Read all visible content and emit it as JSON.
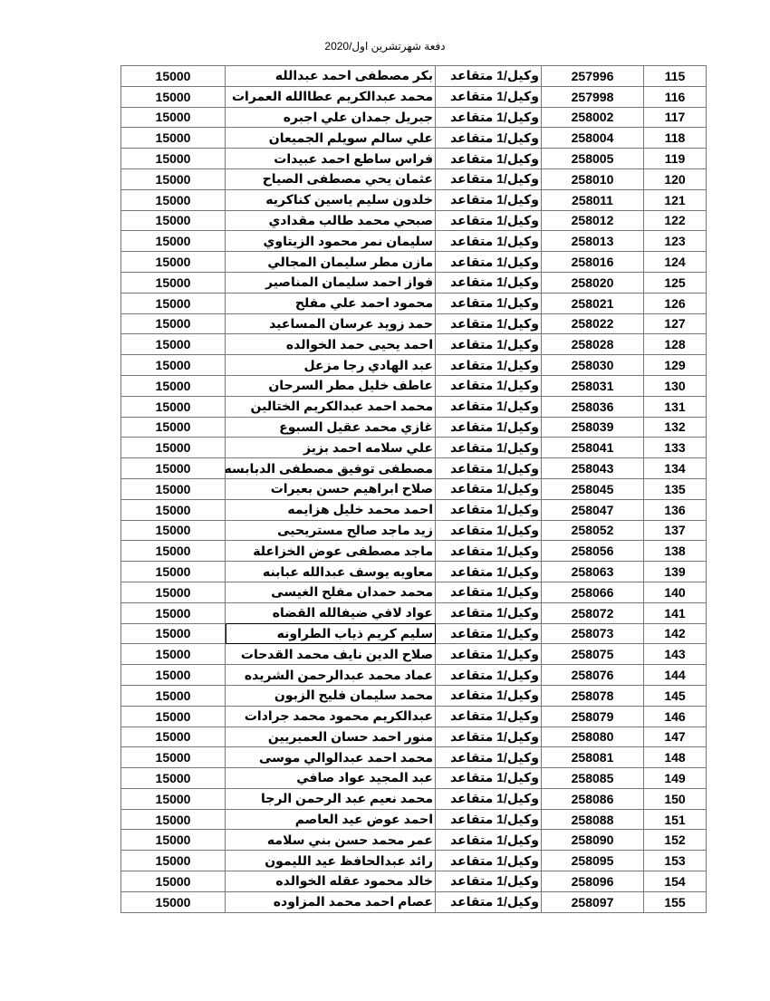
{
  "title": "دفعة شهرتشرين اول/2020",
  "rows": [
    [
      "115",
      "257996",
      "وكيل/1 متقاعد",
      "بكر مصطفى احمد عبدالله",
      "15000"
    ],
    [
      "116",
      "257998",
      "وكيل/1 متقاعد",
      "محمد عبدالكريم عطاالله العمرات",
      "15000"
    ],
    [
      "117",
      "258002",
      "وكيل/1 متقاعد",
      "جبريل جمدان علي اجبره",
      "15000"
    ],
    [
      "118",
      "258004",
      "وكيل/1 متقاعد",
      "علي سالم سويلم الجميعان",
      "15000"
    ],
    [
      "119",
      "258005",
      "وكيل/1 متقاعد",
      "فراس ساطع احمد عبيدات",
      "15000"
    ],
    [
      "120",
      "258010",
      "وكيل/1 متقاعد",
      "عثمان يحي مصطفى الصياح",
      "15000"
    ],
    [
      "121",
      "258011",
      "وكيل/1 متقاعد",
      "خلدون سليم ياسين كناكريه",
      "15000"
    ],
    [
      "122",
      "258012",
      "وكيل/1 متقاعد",
      "صبحي محمد طالب مقدادي",
      "15000"
    ],
    [
      "123",
      "258013",
      "وكيل/1 متقاعد",
      "سليمان نمر محمود الزيتاوي",
      "15000"
    ],
    [
      "124",
      "258016",
      "وكيل/1 متقاعد",
      "مازن مطر سليمان المجالي",
      "15000"
    ],
    [
      "125",
      "258020",
      "وكيل/1 متقاعد",
      "فواز احمد سليمان المناصير",
      "15000"
    ],
    [
      "126",
      "258021",
      "وكيل/1 متقاعد",
      "محمود احمد علي مفلح",
      "15000"
    ],
    [
      "127",
      "258022",
      "وكيل/1 متقاعد",
      "حمد زويد عرسان المساعيد",
      "15000"
    ],
    [
      "128",
      "258028",
      "وكيل/1 متقاعد",
      "احمد يحيى حمد الخوالده",
      "15000"
    ],
    [
      "129",
      "258030",
      "وكيل/1 متقاعد",
      "عبد الهادي رجا مزعل",
      "15000"
    ],
    [
      "130",
      "258031",
      "وكيل/1 متقاعد",
      "عاطف خليل مطر السرحان",
      "15000"
    ],
    [
      "131",
      "258036",
      "وكيل/1 متقاعد",
      "محمد احمد عبدالكريم الختالين",
      "15000"
    ],
    [
      "132",
      "258039",
      "وكيل/1 متقاعد",
      "غازي محمد عقيل السبوع",
      "15000"
    ],
    [
      "133",
      "258041",
      "وكيل/1 متقاعد",
      "علي سلامه احمد بزيز",
      "15000"
    ],
    [
      "134",
      "258043",
      "وكيل/1 متقاعد",
      "مصطفى توفيق مصطفى الدبابسه",
      "15000"
    ],
    [
      "135",
      "258045",
      "وكيل/1 متقاعد",
      "صلاح ابراهيم حسن بعيرات",
      "15000"
    ],
    [
      "136",
      "258047",
      "وكيل/1 متقاعد",
      "احمد محمد خليل هزايمه",
      "15000"
    ],
    [
      "137",
      "258052",
      "وكيل/1 متقاعد",
      "زيد ماجد صالح مستريحيى",
      "15000"
    ],
    [
      "138",
      "258056",
      "وكيل/1 متقاعد",
      "ماجد مصطفى عوض الخزاعلة",
      "15000"
    ],
    [
      "139",
      "258063",
      "وكيل/1 متقاعد",
      "معاويه يوسف عبدالله عبابنه",
      "15000"
    ],
    [
      "140",
      "258066",
      "وكيل/1 متقاعد",
      "محمد حمدان مفلح الغيسى",
      "15000"
    ],
    [
      "141",
      "258072",
      "وكيل/1 متقاعد",
      "عواد لافي ضيفالله القضاه",
      "15000"
    ],
    [
      "142",
      "258073",
      "وكيل/1 متقاعد",
      "سليم كريم ذياب الطراونه",
      "15000"
    ],
    [
      "143",
      "258075",
      "وكيل/1 متقاعد",
      "صلاح الدين نايف محمد القدحات",
      "15000"
    ],
    [
      "144",
      "258076",
      "وكيل/1 متقاعد",
      "عماد محمد عبدالرحمن الشريده",
      "15000"
    ],
    [
      "145",
      "258078",
      "وكيل/1 متقاعد",
      "محمد سليمان فليح الزبون",
      "15000"
    ],
    [
      "146",
      "258079",
      "وكيل/1 متقاعد",
      "عبدالكريم محمود محمد جرادات",
      "15000"
    ],
    [
      "147",
      "258080",
      "وكيل/1 متقاعد",
      "منور احمد حسان العميريين",
      "15000"
    ],
    [
      "148",
      "258081",
      "وكيل/1 متقاعد",
      "محمد احمد عبدالوالي موسى",
      "15000"
    ],
    [
      "149",
      "258085",
      "وكيل/1 متقاعد",
      "عبد المجيد عواد صافي",
      "15000"
    ],
    [
      "150",
      "258086",
      "وكيل/1 متقاعد",
      "محمد نعيم عبد الرحمن الرجا",
      "15000"
    ],
    [
      "151",
      "258088",
      "وكيل/1 متقاعد",
      "احمد عوض عيد العاصم",
      "15000"
    ],
    [
      "152",
      "258090",
      "وكيل/1 متقاعد",
      "عمر محمد حسن بني سلامه",
      "15000"
    ],
    [
      "153",
      "258095",
      "وكيل/1 متقاعد",
      "رائد عبدالحافظ عيد الليمون",
      "15000"
    ],
    [
      "154",
      "258096",
      "وكيل/1 متقاعد",
      "خالد محمود عقله الخوالده",
      "15000"
    ],
    [
      "155",
      "258097",
      "وكيل/1 متقاعد",
      "عصام احمد محمد المزاوده",
      "15000"
    ]
  ],
  "selected_row": "142"
}
